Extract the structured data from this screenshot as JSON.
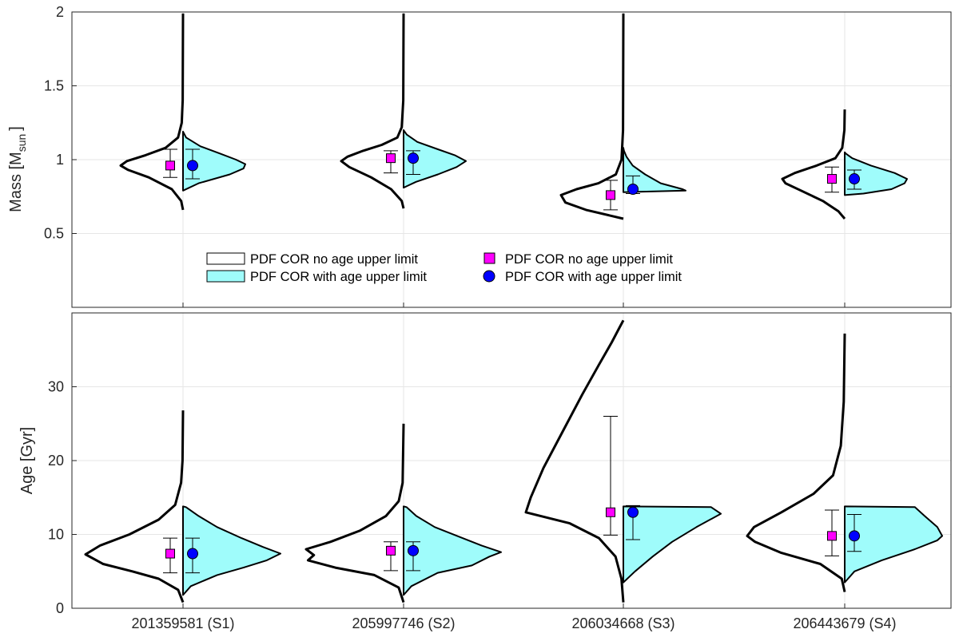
{
  "chart_data": {
    "type": "violin",
    "categories": [
      "201359581 (S1)",
      "205997746 (S2)",
      "206034668 (S3)",
      "206443679 (S4)"
    ],
    "legend": {
      "violin_no_limit": "PDF COR no age upper limit",
      "violin_with_limit": "PDF COR with age upper limit",
      "marker_no_limit": "PDF COR no age upper limit",
      "marker_with_limit": "PDF COR with age upper limit"
    },
    "colors": {
      "violin_with_limit_fill": "#9ffcfb",
      "marker_no_limit": "#ff00ff",
      "marker_with_limit": "#0000ff",
      "outline": "#000000"
    },
    "panels": [
      {
        "id": "mass",
        "ylabel": "Mass [M",
        "ylabel_sub": "sun",
        "ylabel_end": "]",
        "ylim": [
          0,
          2
        ],
        "yticks": [
          0.5,
          1,
          1.5,
          2
        ],
        "ytick_labels": [
          "0.5",
          "1",
          "1.5",
          "2"
        ],
        "stars": [
          {
            "no_limit": {
              "value": 0.96,
              "lower": 0.88,
              "upper": 1.07,
              "violin": [
                [
                  0.66,
                  0
                ],
                [
                  0.72,
                  0.03
                ],
                [
                  0.8,
                  0.18
                ],
                [
                  0.88,
                  0.55
                ],
                [
                  0.93,
                  0.88
                ],
                [
                  0.96,
                  1.0
                ],
                [
                  0.99,
                  0.9
                ],
                [
                  1.03,
                  0.6
                ],
                [
                  1.08,
                  0.28
                ],
                [
                  1.15,
                  0.08
                ],
                [
                  1.25,
                  0.02
                ],
                [
                  1.4,
                  0.005
                ],
                [
                  1.99,
                  0
                ]
              ]
            },
            "with_limit": {
              "value": 0.96,
              "lower": 0.87,
              "upper": 1.07,
              "violin": [
                [
                  0.79,
                  0
                ],
                [
                  0.84,
                  0.25
                ],
                [
                  0.9,
                  0.75
                ],
                [
                  0.94,
                  0.97
                ],
                [
                  0.97,
                  1.0
                ],
                [
                  1.0,
                  0.85
                ],
                [
                  1.04,
                  0.6
                ],
                [
                  1.09,
                  0.28
                ],
                [
                  1.15,
                  0.05
                ],
                [
                  1.19,
                  0
                ]
              ]
            }
          },
          {
            "no_limit": {
              "value": 1.01,
              "lower": 0.91,
              "upper": 1.06,
              "violin": [
                [
                  0.67,
                  0
                ],
                [
                  0.72,
                  0.03
                ],
                [
                  0.8,
                  0.2
                ],
                [
                  0.88,
                  0.52
                ],
                [
                  0.95,
                  0.87
                ],
                [
                  0.99,
                  1.0
                ],
                [
                  1.02,
                  0.9
                ],
                [
                  1.06,
                  0.65
                ],
                [
                  1.1,
                  0.35
                ],
                [
                  1.15,
                  0.1
                ],
                [
                  1.22,
                  0.03
                ],
                [
                  1.4,
                  0.005
                ],
                [
                  1.99,
                  0
                ]
              ]
            },
            "with_limit": {
              "value": 1.01,
              "lower": 0.9,
              "upper": 1.06,
              "violin": [
                [
                  0.81,
                  0
                ],
                [
                  0.85,
                  0.2
                ],
                [
                  0.9,
                  0.55
                ],
                [
                  0.95,
                  0.85
                ],
                [
                  0.99,
                  1.0
                ],
                [
                  1.03,
                  0.82
                ],
                [
                  1.07,
                  0.55
                ],
                [
                  1.12,
                  0.22
                ],
                [
                  1.17,
                  0.05
                ],
                [
                  1.2,
                  0
                ]
              ]
            }
          },
          {
            "no_limit": {
              "value": 0.76,
              "lower": 0.66,
              "upper": 0.86,
              "violin": [
                [
                  0.6,
                  0
                ],
                [
                  0.62,
                  0.2
                ],
                [
                  0.66,
                  0.6
                ],
                [
                  0.71,
                  0.93
                ],
                [
                  0.76,
                  1.0
                ],
                [
                  0.8,
                  0.75
                ],
                [
                  0.84,
                  0.4
                ],
                [
                  0.9,
                  0.12
                ],
                [
                  1.0,
                  0.03
                ],
                [
                  1.2,
                  0.005
                ],
                [
                  1.99,
                  0
                ]
              ]
            },
            "with_limit": {
              "value": 0.8,
              "lower": 0.77,
              "upper": 0.89,
              "violin": [
                [
                  0.78,
                  0
                ],
                [
                  0.785,
                  0.5
                ],
                [
                  0.79,
                  1.0
                ],
                [
                  0.8,
                  0.95
                ],
                [
                  0.84,
                  0.6
                ],
                [
                  0.9,
                  0.35
                ],
                [
                  0.96,
                  0.15
                ],
                [
                  1.02,
                  0.05
                ],
                [
                  1.06,
                  0.01
                ],
                [
                  1.08,
                  0
                ]
              ]
            }
          },
          {
            "no_limit": {
              "value": 0.87,
              "lower": 0.78,
              "upper": 0.95,
              "violin": [
                [
                  0.6,
                  0
                ],
                [
                  0.65,
                  0.1
                ],
                [
                  0.72,
                  0.35
                ],
                [
                  0.79,
                  0.7
                ],
                [
                  0.84,
                  0.95
                ],
                [
                  0.87,
                  1.0
                ],
                [
                  0.91,
                  0.8
                ],
                [
                  0.96,
                  0.45
                ],
                [
                  1.01,
                  0.15
                ],
                [
                  1.08,
                  0.04
                ],
                [
                  1.2,
                  0.005
                ],
                [
                  1.34,
                  0
                ]
              ]
            },
            "with_limit": {
              "value": 0.87,
              "lower": 0.8,
              "upper": 0.93,
              "violin": [
                [
                  0.76,
                  0
                ],
                [
                  0.77,
                  0.3
                ],
                [
                  0.8,
                  0.75
                ],
                [
                  0.84,
                  0.96
                ],
                [
                  0.87,
                  1.0
                ],
                [
                  0.91,
                  0.8
                ],
                [
                  0.96,
                  0.42
                ],
                [
                  1.01,
                  0.12
                ],
                [
                  1.04,
                  0.02
                ],
                [
                  1.05,
                  0
                ]
              ]
            }
          }
        ]
      },
      {
        "id": "age",
        "ylabel": "Age [Gyr]",
        "ylim": [
          0,
          40
        ],
        "yticks": [
          0,
          10,
          20,
          30
        ],
        "ytick_labels": [
          "0",
          "10",
          "20",
          "30"
        ],
        "stars": [
          {
            "no_limit": {
              "value": 7.4,
              "lower": 4.8,
              "upper": 9.5,
              "violin": [
                [
                  0.8,
                  0
                ],
                [
                  2.5,
                  0.05
                ],
                [
                  4.0,
                  0.25
                ],
                [
                  5.0,
                  0.52
                ],
                [
                  6.0,
                  0.82
                ],
                [
                  7.3,
                  1.0
                ],
                [
                  8.5,
                  0.85
                ],
                [
                  10.0,
                  0.55
                ],
                [
                  12.0,
                  0.25
                ],
                [
                  14.0,
                  0.08
                ],
                [
                  17.0,
                  0.02
                ],
                [
                  20,
                  0.005
                ],
                [
                  26.8,
                  0
                ]
              ]
            },
            "with_limit": {
              "value": 7.4,
              "lower": 4.8,
              "upper": 9.5,
              "violin": [
                [
                  1.8,
                  0
                ],
                [
                  3.0,
                  0.08
                ],
                [
                  4.5,
                  0.35
                ],
                [
                  5.5,
                  0.62
                ],
                [
                  6.5,
                  0.86
                ],
                [
                  7.4,
                  1.0
                ],
                [
                  8.3,
                  0.82
                ],
                [
                  9.5,
                  0.6
                ],
                [
                  11.0,
                  0.35
                ],
                [
                  12.5,
                  0.16
                ],
                [
                  13.7,
                  0.03
                ],
                [
                  13.8,
                  0
                ]
              ]
            }
          },
          {
            "no_limit": {
              "value": 7.8,
              "lower": 5.1,
              "upper": 9.0,
              "violin": [
                [
                  0.8,
                  0
                ],
                [
                  2.8,
                  0.05
                ],
                [
                  4.5,
                  0.3
                ],
                [
                  5.5,
                  0.7
                ],
                [
                  6.5,
                  0.98
                ],
                [
                  7.2,
                  0.92
                ],
                [
                  8.0,
                  1.0
                ],
                [
                  9.0,
                  0.75
                ],
                [
                  10.5,
                  0.45
                ],
                [
                  12.5,
                  0.18
                ],
                [
                  14.5,
                  0.05
                ],
                [
                  17,
                  0.01
                ],
                [
                  25,
                  0
                ]
              ]
            },
            "with_limit": {
              "value": 7.8,
              "lower": 5.1,
              "upper": 9.0,
              "violin": [
                [
                  1.8,
                  0
                ],
                [
                  3.0,
                  0.08
                ],
                [
                  4.8,
                  0.35
                ],
                [
                  5.8,
                  0.7
                ],
                [
                  7.0,
                  0.88
                ],
                [
                  7.6,
                  1.0
                ],
                [
                  8.5,
                  0.8
                ],
                [
                  9.8,
                  0.55
                ],
                [
                  11.0,
                  0.32
                ],
                [
                  12.5,
                  0.13
                ],
                [
                  13.7,
                  0.03
                ],
                [
                  13.8,
                  0
                ]
              ]
            }
          },
          {
            "no_limit": {
              "value": 13.0,
              "lower": 9.9,
              "upper": 26.0,
              "violin": [
                [
                  0.8,
                  0
                ],
                [
                  4.0,
                  0.02
                ],
                [
                  7.0,
                  0.08
                ],
                [
                  9.5,
                  0.25
                ],
                [
                  11.5,
                  0.55
                ],
                [
                  13.0,
                  1.0
                ],
                [
                  15.0,
                  0.95
                ],
                [
                  19.0,
                  0.82
                ],
                [
                  24.0,
                  0.62
                ],
                [
                  29.0,
                  0.42
                ],
                [
                  33.0,
                  0.25
                ],
                [
                  36.0,
                  0.12
                ],
                [
                  38.0,
                  0.04
                ],
                [
                  39.0,
                  0
                ]
              ]
            },
            "with_limit": {
              "value": 13.0,
              "lower": 9.3,
              "upper": 13.9,
              "violin": [
                [
                  3.5,
                  0
                ],
                [
                  5.0,
                  0.12
                ],
                [
                  7.0,
                  0.3
                ],
                [
                  9.0,
                  0.5
                ],
                [
                  11.0,
                  0.75
                ],
                [
                  12.8,
                  1.0
                ],
                [
                  13.7,
                  0.9
                ],
                [
                  13.8,
                  0
                ]
              ]
            }
          },
          {
            "no_limit": {
              "value": 9.8,
              "lower": 7.1,
              "upper": 13.3,
              "violin": [
                [
                  2.2,
                  0
                ],
                [
                  4.0,
                  0.03
                ],
                [
                  6.0,
                  0.25
                ],
                [
                  7.5,
                  0.65
                ],
                [
                  9.0,
                  0.92
                ],
                [
                  9.8,
                  1.0
                ],
                [
                  11.0,
                  0.93
                ],
                [
                  13.0,
                  0.65
                ],
                [
                  15.5,
                  0.32
                ],
                [
                  18.0,
                  0.12
                ],
                [
                  22.0,
                  0.04
                ],
                [
                  28.0,
                  0.01
                ],
                [
                  37.2,
                  0
                ]
              ]
            },
            "with_limit": {
              "value": 9.8,
              "lower": 7.7,
              "upper": 12.7,
              "violin": [
                [
                  3.5,
                  0
                ],
                [
                  5.0,
                  0.1
                ],
                [
                  6.5,
                  0.38
                ],
                [
                  8.0,
                  0.72
                ],
                [
                  9.2,
                  0.95
                ],
                [
                  9.8,
                  1.0
                ],
                [
                  11.0,
                  0.95
                ],
                [
                  12.5,
                  0.82
                ],
                [
                  13.7,
                  0.72
                ],
                [
                  13.8,
                  0
                ]
              ]
            }
          }
        ]
      }
    ]
  }
}
